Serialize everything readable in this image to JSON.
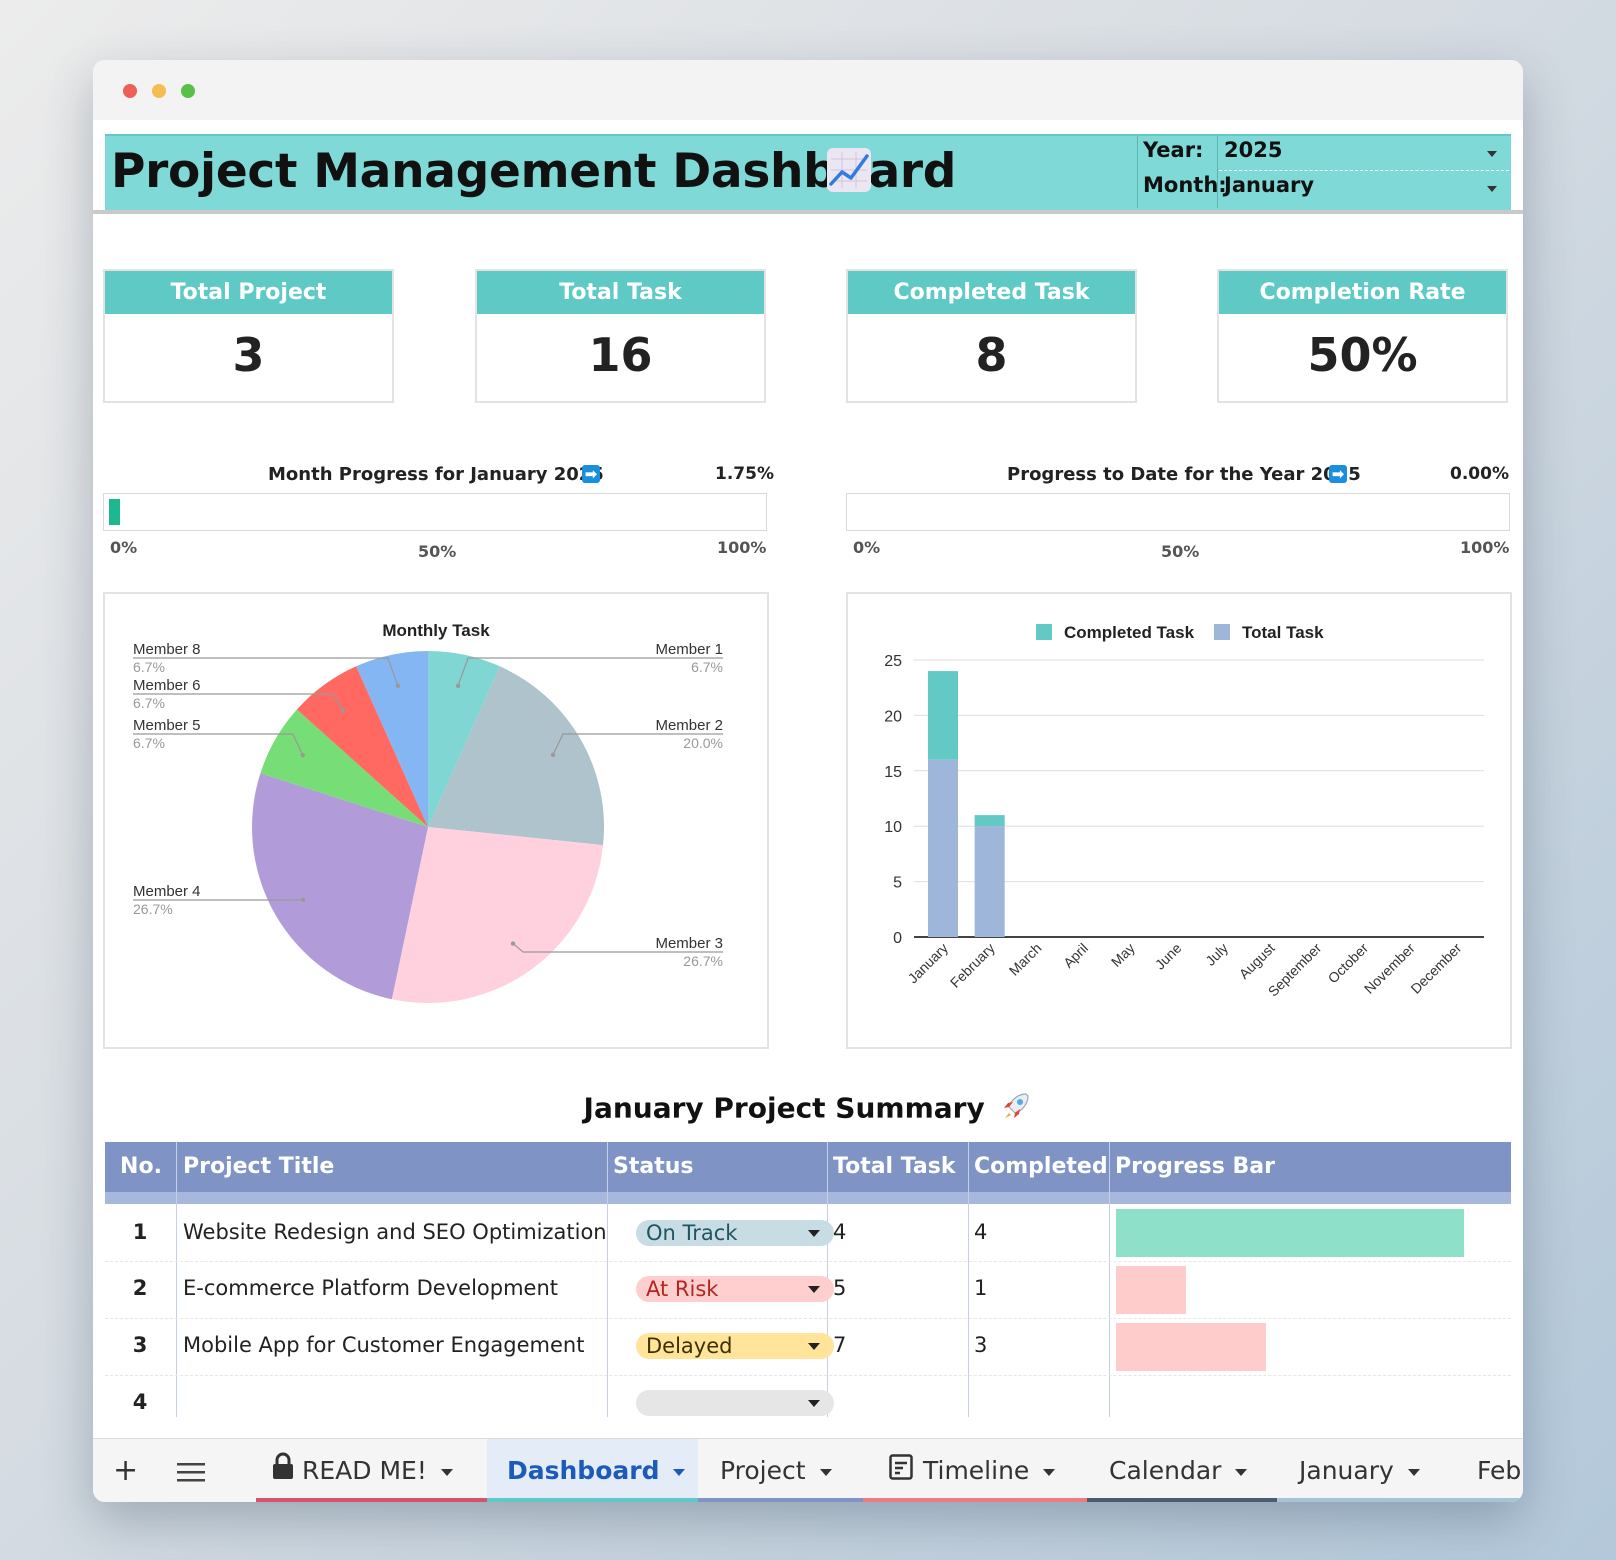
{
  "header": {
    "title": "Project Management Dashboard",
    "year_label": "Year:",
    "year_value": "2025",
    "month_label": "Month:",
    "month_value": "January"
  },
  "kpis": [
    {
      "label": "Total Project",
      "value": "3"
    },
    {
      "label": "Total Task",
      "value": "16"
    },
    {
      "label": "Completed Task",
      "value": "8"
    },
    {
      "label": "Completion Rate",
      "value": "50%"
    }
  ],
  "progress": {
    "month": {
      "title": "Month Progress for January 2025",
      "value_text": "1.75%",
      "value": 0.0175
    },
    "year": {
      "title": "Progress to Date for the Year 2025",
      "value_text": "0.00%",
      "value": 0
    },
    "ticks": [
      "0%",
      "50%",
      "100%"
    ],
    "arrow_icon": "arrow-right-icon"
  },
  "chart_data": [
    {
      "type": "pie",
      "title": "Monthly Task",
      "slices": [
        {
          "label": "Member 1",
          "pct_text": "6.7%",
          "value": 6.7,
          "color": "#7fd6d3"
        },
        {
          "label": "Member 2",
          "pct_text": "20.0%",
          "value": 20.0,
          "color": "#aec3cc"
        },
        {
          "label": "Member 3",
          "pct_text": "26.7%",
          "value": 26.7,
          "color": "#ffd1de"
        },
        {
          "label": "Member 4",
          "pct_text": "26.7%",
          "value": 26.7,
          "color": "#b19cd9"
        },
        {
          "label": "Member 5",
          "pct_text": "6.7%",
          "value": 6.7,
          "color": "#77dd77"
        },
        {
          "label": "Member 6",
          "pct_text": "6.7%",
          "value": 6.7,
          "color": "#ff6961"
        },
        {
          "label": "Member 8",
          "pct_text": "6.7%",
          "value": 6.7,
          "color": "#84b6f4"
        }
      ]
    },
    {
      "type": "bar",
      "stacked": true,
      "categories": [
        "January",
        "February",
        "March",
        "April",
        "May",
        "June",
        "July",
        "August",
        "September",
        "October",
        "November",
        "December"
      ],
      "series": [
        {
          "name": "Completed Task",
          "color": "#63c9c4",
          "values": [
            8,
            1,
            0,
            0,
            0,
            0,
            0,
            0,
            0,
            0,
            0,
            0
          ]
        },
        {
          "name": "Total Task",
          "color": "#9eb6da",
          "values": [
            16,
            10,
            0,
            0,
            0,
            0,
            0,
            0,
            0,
            0,
            0,
            0
          ]
        }
      ],
      "yticks": [
        0,
        5,
        10,
        15,
        20,
        25
      ],
      "ylim": [
        0,
        25
      ],
      "grid": true,
      "legend": "top"
    }
  ],
  "summary": {
    "title": "January Project Summary",
    "columns": [
      "No.",
      "Project Title",
      "Status",
      "Total Task",
      "Completed",
      "Progress Bar"
    ],
    "rows": [
      {
        "no": "1",
        "title": "Website Redesign and SEO Optimization",
        "status": "On Track",
        "status_bg": "#c7dde3",
        "status_color": "#1e5563",
        "total": "4",
        "completed": "4",
        "progress": 1.0,
        "bar_color": "#8ee0c9"
      },
      {
        "no": "2",
        "title": "E-commerce Platform Development",
        "status": "At Risk",
        "status_bg": "#ffcfcf",
        "status_color": "#b3261e",
        "total": "5",
        "completed": "1",
        "progress": 0.2,
        "bar_color": "#ffcccc"
      },
      {
        "no": "3",
        "title": "Mobile App for Customer Engagement",
        "status": "Delayed",
        "status_bg": "#ffe49a",
        "status_color": "#3d3000",
        "total": "7",
        "completed": "3",
        "progress": 0.43,
        "bar_color": "#ffcccc"
      },
      {
        "no": "4",
        "title": "",
        "status": "",
        "status_bg": "#e6e6e6",
        "status_color": "#222",
        "total": "",
        "completed": "",
        "progress": 0,
        "bar_color": "#ffffff"
      }
    ]
  },
  "tabs": [
    {
      "label": "READ ME!",
      "icon": "lock-icon",
      "color": "#d4546e"
    },
    {
      "label": "Dashboard",
      "active": true,
      "color": "#5fcac5"
    },
    {
      "label": "Project",
      "color": "#7f93c5"
    },
    {
      "label": "Timeline",
      "icon": "timeline-icon",
      "color": "#ee7b82"
    },
    {
      "label": "Calendar",
      "color": "#4a5d6e"
    },
    {
      "label": "January",
      "color": "#a7c4d3"
    },
    {
      "label": "Feb",
      "color": "#a7c4d3"
    }
  ]
}
